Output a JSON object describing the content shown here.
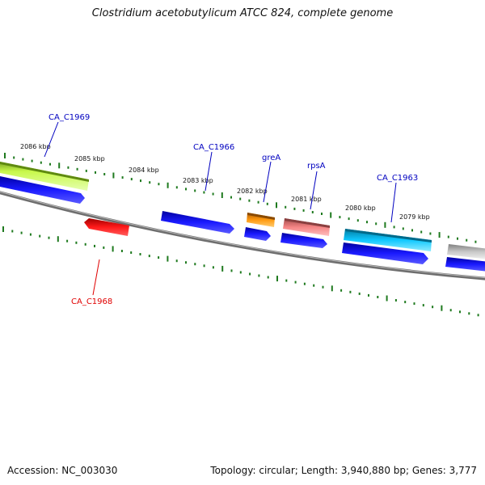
{
  "header": {
    "title": "Clostridium acetobutylicum ATCC 824, complete genome"
  },
  "footer": {
    "accession": "Accession: NC_003030",
    "topology": "Topology: circular; Length: 3,940,880 bp; Genes: 3,777"
  },
  "ruler": {
    "tick_labels": [
      "2086 kbp",
      "2085 kbp",
      "2084 kbp",
      "2083 kbp",
      "2082 kbp",
      "2081 kbp",
      "2080 kbp",
      "2079 kbp"
    ]
  },
  "colors": {
    "label_blue": "#0000c0",
    "label_red": "#e00000",
    "tick_green": "#1f7a1f",
    "backbone_gray": "#777777"
  },
  "genes": [
    {
      "label": "CA_C1969",
      "color": "#a8e62a"
    },
    {
      "label": "",
      "color": "#1010d8"
    },
    {
      "label": "CA_C1968",
      "color": "#e80000"
    },
    {
      "label": "CA_C1966",
      "color": "#1010d8"
    },
    {
      "label": "greA",
      "color": "#ff8c00"
    },
    {
      "label": "",
      "color": "#1010d8"
    },
    {
      "label": "rpsA",
      "color": "#f07878"
    },
    {
      "label": "",
      "color": "#1010d8"
    },
    {
      "label": "CA_C1963",
      "color": "#00bff0"
    },
    {
      "label": "",
      "color": "#1010d8"
    },
    {
      "label": "",
      "color": "#bdbdbd"
    }
  ]
}
